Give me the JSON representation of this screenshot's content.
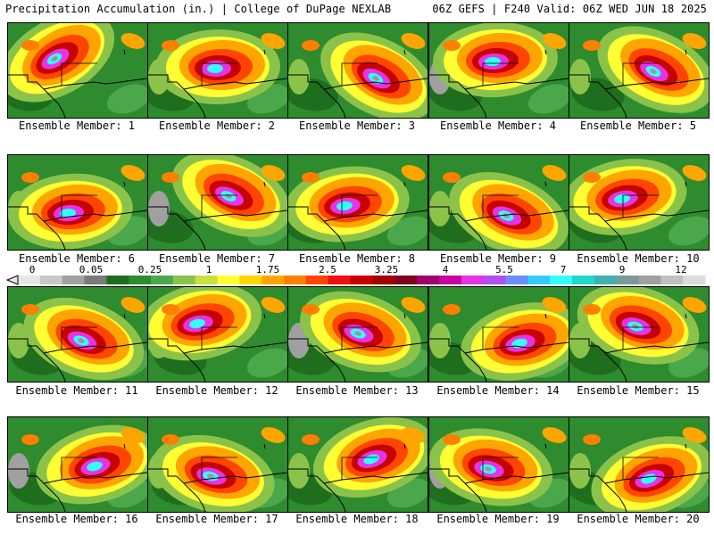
{
  "header": {
    "left": "Precipitation Accumulation (in.) | College of DuPage NEXLAB",
    "right": "06Z GEFS | F240 Valid: 06Z WED JUN 18 2025"
  },
  "panels": [
    {
      "label": "Ensemble Member: 1"
    },
    {
      "label": "Ensemble Member: 2"
    },
    {
      "label": "Ensemble Member: 3"
    },
    {
      "label": "Ensemble Member: 4"
    },
    {
      "label": "Ensemble Member: 5"
    },
    {
      "label": "Ensemble Member: 6"
    },
    {
      "label": "Ensemble Member: 7"
    },
    {
      "label": "Ensemble Member: 8"
    },
    {
      "label": "Ensemble Member: 9"
    },
    {
      "label": "Ensemble Member: 10"
    },
    {
      "label": "Ensemble Member: 11"
    },
    {
      "label": "Ensemble Member: 12"
    },
    {
      "label": "Ensemble Member: 13"
    },
    {
      "label": "Ensemble Member: 14"
    },
    {
      "label": "Ensemble Member: 15"
    },
    {
      "label": "Ensemble Member: 16"
    },
    {
      "label": "Ensemble Member: 17"
    },
    {
      "label": "Ensemble Member: 18"
    },
    {
      "label": "Ensemble Member: 19"
    },
    {
      "label": "Ensemble Member: 20"
    }
  ],
  "colorbar": {
    "labels": [
      "0",
      "0.05",
      "0.25",
      "1",
      "1.75",
      "2.5",
      "3.25",
      "4",
      "5.5",
      "7",
      "9",
      "12"
    ],
    "colors": [
      "#e6e6e6",
      "#c8c8c8",
      "#a0a0a0",
      "#7a7a7a",
      "#1e6e1e",
      "#2e8b2e",
      "#4aa84a",
      "#8bc34a",
      "#c8e040",
      "#ffff33",
      "#ffd700",
      "#ffa500",
      "#ff7f00",
      "#ff4500",
      "#ee1010",
      "#c80000",
      "#a00000",
      "#800020",
      "#a0006e",
      "#c800a0",
      "#e633e6",
      "#b050f0",
      "#6a8cff",
      "#33ccff",
      "#33ffff",
      "#20d8c8",
      "#40b0b0",
      "#7a9a9a",
      "#a0a0a0",
      "#c0c0c0",
      "#dcdcdc"
    ]
  }
}
